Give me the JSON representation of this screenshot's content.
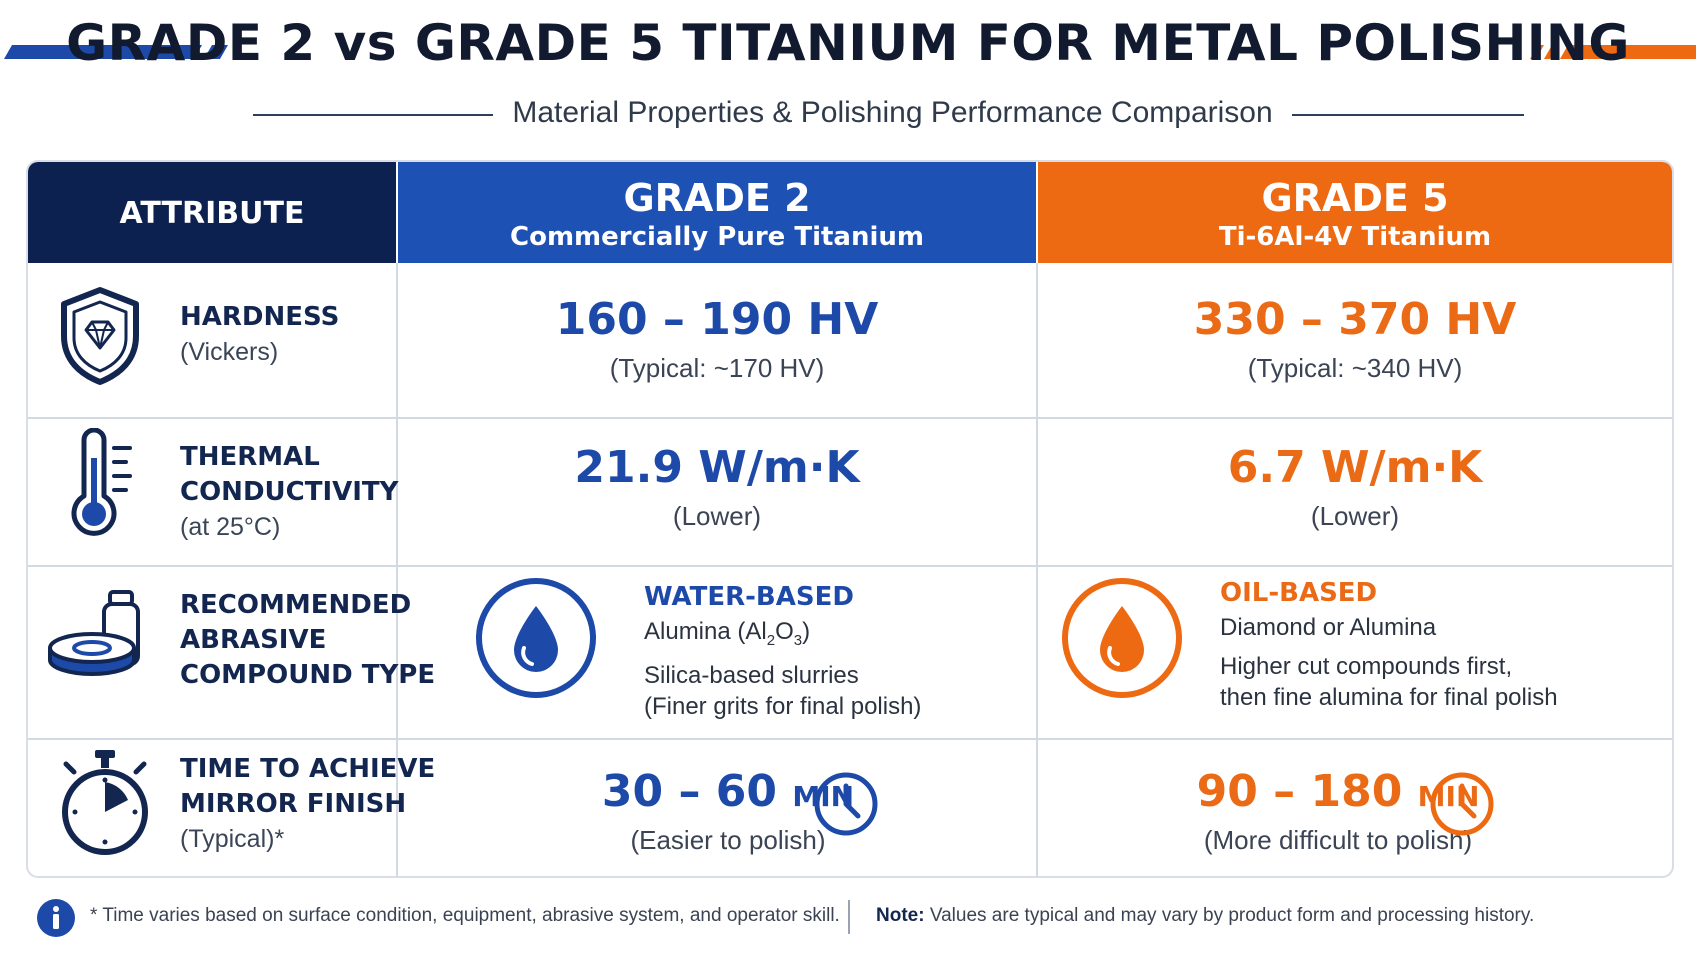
{
  "title": "GRADE 2 vs GRADE 5 TITANIUM FOR METAL POLISHING",
  "subtitle": "Material Properties & Polishing Performance Comparison",
  "colors": {
    "navy": "#0d2150",
    "blue": "#1d51b3",
    "orange": "#ee6a12"
  },
  "header": {
    "attribute": "ATTRIBUTE",
    "grade2": {
      "name": "GRADE 2",
      "desc": "Commercially Pure Titanium"
    },
    "grade5": {
      "name": "GRADE 5",
      "desc": "Ti-6Al-4V Titanium"
    }
  },
  "rows": {
    "hardness": {
      "icon": "shield-diamond-icon",
      "name": "HARDNESS",
      "note": "(Vickers)",
      "grade2": {
        "value": "160 – 190 HV",
        "note": "(Typical: ~170 HV)"
      },
      "grade5": {
        "value": "330 – 370 HV",
        "note": "(Typical: ~340 HV)"
      }
    },
    "thermal": {
      "icon": "thermometer-icon",
      "name_line1": "THERMAL",
      "name_line2": "CONDUCTIVITY",
      "note": "(at 25°C)",
      "grade2": {
        "value": "21.9 W/m·K",
        "note": "(Lower)"
      },
      "grade5": {
        "value": "6.7 W/m·K",
        "note": "(Lower)"
      }
    },
    "compound": {
      "icon": "abrasive-compound-icon",
      "name_line1": "RECOMMENDED",
      "name_line2": "ABRASIVE",
      "name_line3": "COMPOUND TYPE",
      "grade2": {
        "icon": "water-drop-icon",
        "type": "WATER-BASED",
        "line1": "Alumina (Al",
        "line1_sub1": "2",
        "line1_mid": "O",
        "line1_sub2": "3",
        "line1_end": ")",
        "line2": "Silica-based slurries",
        "line3": "(Finer grits for final polish)"
      },
      "grade5": {
        "icon": "oil-drop-icon",
        "type": "OIL-BASED",
        "line1": "Diamond or Alumina",
        "line2": "Higher cut compounds first,",
        "line3": "then fine alumina for final polish"
      }
    },
    "time": {
      "icon": "stopwatch-icon",
      "name_line1": "TIME TO ACHIEVE",
      "name_line2": "MIRROR FINISH",
      "note": "(Typical)*",
      "grade2": {
        "value": "30 – 60",
        "unit": "MIN",
        "note": "(Easier to polish)",
        "icon": "clock-icon"
      },
      "grade5": {
        "value": "90 – 180",
        "unit": "MIN",
        "note": "(More difficult to polish)",
        "icon": "clock-icon"
      }
    }
  },
  "footer": {
    "icon": "info-icon",
    "footnote": "* Time varies based on surface condition, equipment, abrasive system, and operator skill.",
    "note_label": "Note:",
    "note_text": " Values are typical and may vary by product form and processing history."
  }
}
